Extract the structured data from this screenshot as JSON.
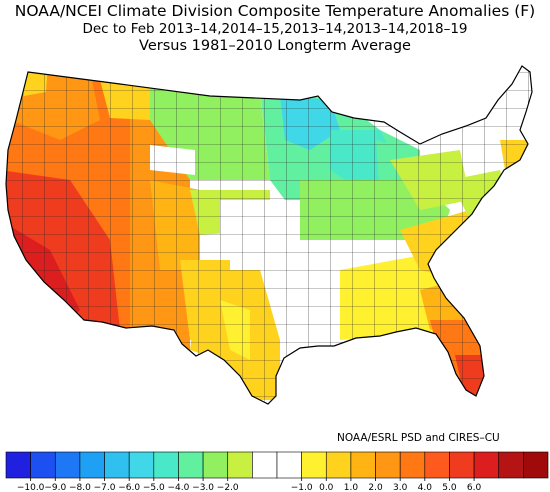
{
  "title": {
    "line1": "NOAA/NCEI Climate Division Composite Temperature Anomalies (F)",
    "line2": "Dec to Feb  2013–14,2014–15,2013–14,2013–14,2018–19",
    "line3": "Versus 1981–2010 Longterm Average"
  },
  "credit": "NOAA/ESRL PSD and CIRES–CU",
  "legend": {
    "colors": [
      "#2020e0",
      "#1c50f0",
      "#1e78f5",
      "#1ea0f5",
      "#30c0f0",
      "#40d8e8",
      "#48e8c8",
      "#60f0a0",
      "#90f060",
      "#c8f040",
      "#ffffff",
      "#ffffff",
      "#fff030",
      "#ffd21e",
      "#ffb414",
      "#ff9614",
      "#ff7814",
      "#ff5a1e",
      "#f03c1e",
      "#dc1e1e",
      "#b41414",
      "#a00a0a"
    ],
    "labels": [
      "−10.0",
      "−9.0",
      "−8.0",
      "−7.0",
      "−6.0",
      "−5.0",
      "−4.0",
      "−3.0",
      "−2.0",
      "−1.0",
      "0.0",
      "1.0",
      "2.0",
      "3.0",
      "4.0",
      "5.0",
      "6.0"
    ],
    "label_positions": [
      1,
      2,
      3,
      4,
      5,
      6,
      7,
      8,
      9,
      12,
      13,
      14,
      15,
      16,
      17,
      18,
      19
    ]
  }
}
